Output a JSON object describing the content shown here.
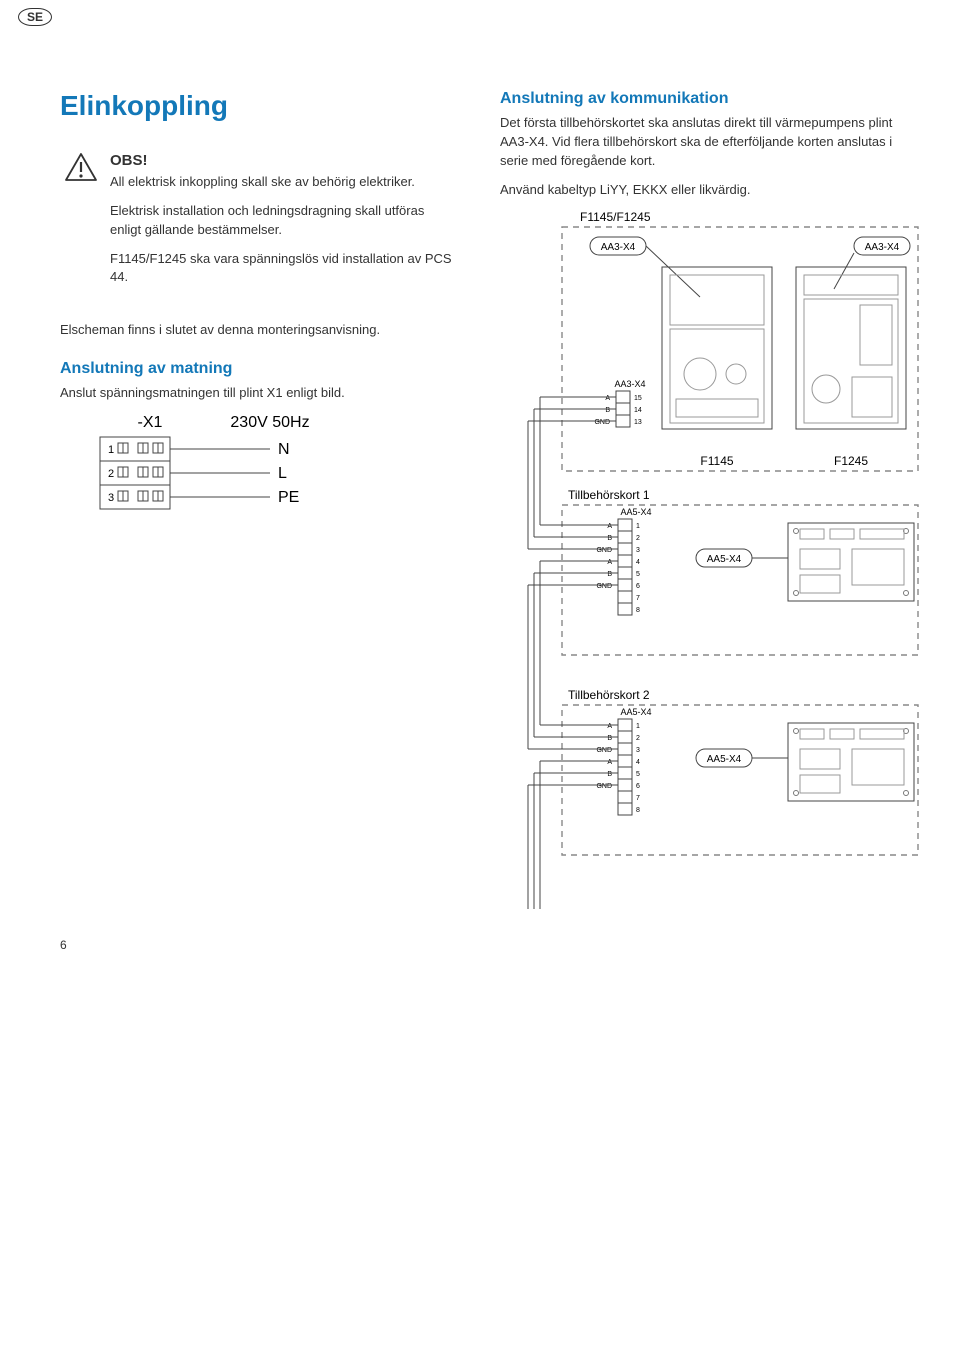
{
  "badge": "SE",
  "page_number": "6",
  "colors": {
    "heading_blue": "#1378b8",
    "text": "#333333",
    "line": "#444444",
    "dash": "#888888"
  },
  "left": {
    "title": "Elinkoppling",
    "note": {
      "title": "OBS!",
      "p1": "All elektrisk inkoppling skall ske av behörig elektriker.",
      "p2": "Elektrisk installation och ledningsdragning skall utföras enligt gällande bestämmelser.",
      "p3": "F1145/F1245 ska vara spänningslös vid installation av PCS 44."
    },
    "p_schema": "Elscheman finns i slutet av denna monteringsanvisning.",
    "h_matning": "Anslutning av matning",
    "p_matning": "Anslut spänningsmatningen till plint X1 enligt bild.",
    "x1": {
      "name": "-X1",
      "supply": "230V 50Hz",
      "rows": [
        {
          "num": "1",
          "label": "N"
        },
        {
          "num": "2",
          "label": "L"
        },
        {
          "num": "3",
          "label": "PE"
        }
      ]
    }
  },
  "right": {
    "h_komm": "Anslutning av kommunikation",
    "p1": "Det första tillbehörskortet ska anslutas direkt till värmepumpens plint AA3-X4. Vid flera tillbehörskort ska de efterföljande korten anslutas i serie med föregående kort.",
    "p2": "Använd kabeltyp LiYY, EKKX eller likvärdig.",
    "diagram": {
      "top_label": "F1145/F1245",
      "aa3_x4": "AA3-X4",
      "f1145": "F1145",
      "f1245": "F1245",
      "aa3_block": {
        "title": "AA3-X4",
        "rows": [
          {
            "sig": "A",
            "num": "15"
          },
          {
            "sig": "B",
            "num": "14"
          },
          {
            "sig": "GND",
            "num": "13"
          }
        ]
      },
      "tb1": {
        "title": "Tillbehörskort 1",
        "conn": "AA5-X4",
        "callout": "AA5-X4",
        "rows": [
          {
            "sig": "A",
            "num": "1"
          },
          {
            "sig": "B",
            "num": "2"
          },
          {
            "sig": "GND",
            "num": "3"
          },
          {
            "sig": "A",
            "num": "4"
          },
          {
            "sig": "B",
            "num": "5"
          },
          {
            "sig": "GND",
            "num": "6"
          },
          {
            "sig": "",
            "num": "7"
          },
          {
            "sig": "",
            "num": "8"
          }
        ]
      },
      "tb2": {
        "title": "Tillbehörskort 2",
        "conn": "AA5-X4",
        "callout": "AA5-X4",
        "rows": [
          {
            "sig": "A",
            "num": "1"
          },
          {
            "sig": "B",
            "num": "2"
          },
          {
            "sig": "GND",
            "num": "3"
          },
          {
            "sig": "A",
            "num": "4"
          },
          {
            "sig": "B",
            "num": "5"
          },
          {
            "sig": "GND",
            "num": "6"
          },
          {
            "sig": "",
            "num": "7"
          },
          {
            "sig": "",
            "num": "8"
          }
        ]
      }
    }
  }
}
